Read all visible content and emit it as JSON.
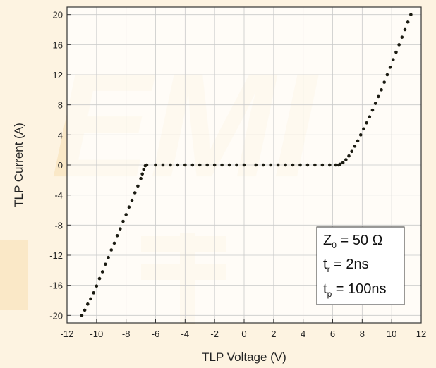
{
  "chart_data": {
    "type": "scatter",
    "title": "",
    "xlabel": "TLP Voltage (V)",
    "ylabel": "TLP Current (A)",
    "xlim": [
      -12,
      12
    ],
    "ylim": [
      -21,
      21
    ],
    "xticks": [
      -12,
      -10,
      -8,
      -6,
      -4,
      -2,
      0,
      2,
      4,
      6,
      8,
      10,
      12
    ],
    "yticks": [
      -20,
      -16,
      -12,
      -8,
      -4,
      0,
      4,
      8,
      12,
      16,
      20
    ],
    "grid": true,
    "legend_position": "bottom-right",
    "marker_color": "#1b1b12",
    "annotation": {
      "lines": [
        {
          "main": "Z",
          "sub": "0",
          "rest": " = 50 Ω"
        },
        {
          "main": "t",
          "sub": "r",
          "rest": " = 2ns"
        },
        {
          "main": "t",
          "sub": "p",
          "rest": " = 100ns"
        }
      ]
    },
    "series": [
      {
        "name": "",
        "x": [
          -11.0,
          -10.8,
          -10.6,
          -10.4,
          -10.2,
          -10.0,
          -9.8,
          -9.6,
          -9.4,
          -9.2,
          -9.0,
          -8.8,
          -8.6,
          -8.4,
          -8.2,
          -8.0,
          -7.8,
          -7.6,
          -7.4,
          -7.2,
          -7.0,
          -6.9,
          -6.8,
          -6.7,
          -6.6,
          -6.0,
          -5.5,
          -5.0,
          -4.5,
          -4.0,
          -3.5,
          -3.0,
          -2.5,
          -2.0,
          -1.5,
          -1.0,
          -0.5,
          0.0,
          0.8,
          1.3,
          1.8,
          2.3,
          2.8,
          3.3,
          3.8,
          4.3,
          4.8,
          5.3,
          5.8,
          6.2,
          6.4,
          6.5,
          6.7,
          6.9,
          7.1,
          7.3,
          7.5,
          7.7,
          7.9,
          8.1,
          8.3,
          8.5,
          8.7,
          8.9,
          9.1,
          9.3,
          9.5,
          9.7,
          9.9,
          10.1,
          10.3,
          10.5,
          10.7,
          10.9,
          11.1,
          11.3
        ],
        "y": [
          -20.0,
          -19.3,
          -18.5,
          -17.8,
          -17.0,
          -16.1,
          -15.1,
          -14.2,
          -13.2,
          -12.3,
          -11.3,
          -10.4,
          -9.4,
          -8.5,
          -7.5,
          -6.6,
          -5.6,
          -4.7,
          -3.7,
          -2.8,
          -1.8,
          -1.2,
          -0.6,
          -0.1,
          0.0,
          0.0,
          0.0,
          0.0,
          0.0,
          0.0,
          0.0,
          0.0,
          0.0,
          0.0,
          0.0,
          0.0,
          0.0,
          0.0,
          0.0,
          0.0,
          0.0,
          0.0,
          0.0,
          0.0,
          0.0,
          0.0,
          0.0,
          0.0,
          0.0,
          0.0,
          0.0,
          0.1,
          0.3,
          0.7,
          1.2,
          1.8,
          2.5,
          3.2,
          4.0,
          4.8,
          5.6,
          6.4,
          7.3,
          8.2,
          9.1,
          10.0,
          11.0,
          12.0,
          13.0,
          14.0,
          15.0,
          16.0,
          17.0,
          18.0,
          19.0,
          20.0
        ]
      }
    ]
  }
}
